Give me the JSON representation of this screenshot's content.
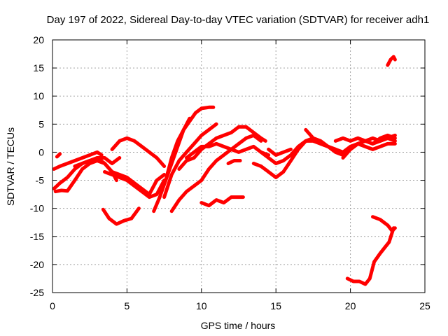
{
  "chart_data": {
    "type": "line",
    "title": "Day 197 of 2022, Sidereal Day-to-day VTEC variation (SDTVAR) for receiver adh1",
    "xlabel": "GPS time / hours",
    "ylabel": "SDTVAR / TECUs",
    "xlim": [
      0,
      25
    ],
    "ylim": [
      -25,
      20
    ],
    "xticks": [
      0,
      5,
      10,
      15,
      20,
      25
    ],
    "yticks": [
      -25,
      -20,
      -15,
      -10,
      -5,
      0,
      5,
      10,
      15,
      20
    ],
    "grid": true,
    "color": "#ff0000",
    "series": [
      {
        "name": "s1",
        "x": [
          0.1,
          0.5,
          1.0,
          1.5,
          2.0,
          2.5,
          3.0,
          3.3
        ],
        "y": [
          -3.0,
          -2.5,
          -2.0,
          -1.5,
          -1.0,
          -0.5,
          0.0,
          -0.5
        ]
      },
      {
        "name": "s2",
        "x": [
          0.1,
          0.5,
          1.0,
          1.5,
          2.0,
          2.5
        ],
        "y": [
          -6.5,
          -5.5,
          -4.5,
          -3.0,
          -2.0,
          -1.5
        ]
      },
      {
        "name": "s3",
        "x": [
          0.2,
          0.6,
          1.0,
          1.5,
          2.0,
          2.5,
          3.0,
          3.5,
          4.0,
          4.3
        ],
        "y": [
          -7.0,
          -6.8,
          -6.9,
          -5.0,
          -3.0,
          -2.0,
          -1.5,
          -2.0,
          -3.5,
          -5.0
        ]
      },
      {
        "name": "s4",
        "x": [
          0.3,
          0.5
        ],
        "y": [
          -0.8,
          -0.3
        ]
      },
      {
        "name": "s5",
        "x": [
          1.5,
          2.0,
          2.5,
          3.0,
          3.5,
          4.0,
          4.5
        ],
        "y": [
          -2.5,
          -2.0,
          -1.5,
          -1.0,
          -1.0,
          -2.0,
          -1.0
        ]
      },
      {
        "name": "s6",
        "x": [
          3.0,
          3.5,
          4.0,
          4.5,
          5.0,
          5.5,
          6.0,
          6.5,
          7.0,
          7.5
        ],
        "y": [
          -1.0,
          -2.0,
          -3.5,
          -4.0,
          -4.5,
          -5.5,
          -6.5,
          -7.5,
          -5.0,
          -4.0
        ]
      },
      {
        "name": "s7",
        "x": [
          3.5,
          4.0,
          4.5,
          5.0,
          5.5,
          6.0,
          6.5,
          7.0,
          7.5
        ],
        "y": [
          -3.5,
          -4.0,
          -4.5,
          -5.0,
          -6.0,
          -7.0,
          -8.0,
          -7.5,
          -5.0
        ]
      },
      {
        "name": "s8",
        "x": [
          4.0,
          4.5,
          5.0,
          5.5,
          6.0,
          6.5,
          7.0,
          7.5
        ],
        "y": [
          0.5,
          2.0,
          2.5,
          2.0,
          1.0,
          0.0,
          -1.0,
          -2.5
        ]
      },
      {
        "name": "s9",
        "x": [
          3.4,
          3.8,
          4.3,
          4.8,
          5.3,
          5.8
        ],
        "y": [
          -10.2,
          -11.8,
          -12.8,
          -12.2,
          -11.8,
          -10.0
        ]
      },
      {
        "name": "s10",
        "x": [
          6.8,
          7.2,
          7.6,
          8.0,
          8.4,
          8.8,
          9.2
        ],
        "y": [
          -10.5,
          -8.0,
          -5.0,
          -2.0,
          1.0,
          4.0,
          6.0
        ]
      },
      {
        "name": "s11",
        "x": [
          7.6,
          8.0,
          8.4,
          8.8,
          9.2,
          9.6,
          10.0,
          10.5,
          10.8
        ],
        "y": [
          -5.0,
          -1.0,
          2.0,
          4.0,
          5.5,
          7.0,
          7.8,
          8.0,
          8.0
        ]
      },
      {
        "name": "s12",
        "x": [
          7.5,
          8.0,
          8.5,
          9.0,
          9.5,
          10.0,
          10.5,
          11.0
        ],
        "y": [
          -8.0,
          -4.0,
          -1.5,
          0.0,
          1.5,
          3.0,
          4.0,
          5.0
        ]
      },
      {
        "name": "s13",
        "x": [
          8.5,
          9.0,
          9.5,
          10.0,
          10.5,
          11.0,
          11.5,
          12.0,
          12.5,
          13.0,
          13.5,
          14.0,
          14.3
        ],
        "y": [
          -3.0,
          -1.5,
          -1.0,
          0.5,
          1.5,
          2.5,
          3.0,
          3.5,
          4.5,
          4.5,
          3.5,
          2.5,
          2.0
        ]
      },
      {
        "name": "s14",
        "x": [
          8.0,
          8.5,
          9.0,
          9.5,
          10.0,
          10.5,
          11.0,
          11.5,
          12.0,
          12.5,
          13.0,
          13.5,
          14.0
        ],
        "y": [
          -10.5,
          -8.5,
          -7.0,
          -6.0,
          -5.0,
          -3.0,
          -1.5,
          -0.5,
          0.5,
          1.5,
          2.5,
          3.0,
          2.0
        ]
      },
      {
        "name": "s15",
        "x": [
          9.0,
          9.5,
          10.0,
          10.5,
          11.0,
          11.5,
          12.0,
          12.5,
          13.0,
          13.5,
          14.0,
          14.5
        ],
        "y": [
          -1.0,
          0.0,
          1.0,
          1.0,
          1.5,
          1.0,
          0.5,
          0.0,
          0.5,
          1.0,
          0.0,
          -0.5
        ]
      },
      {
        "name": "s16",
        "x": [
          10.0,
          10.5,
          11.0,
          11.5,
          12.0,
          12.5,
          12.8
        ],
        "y": [
          -9.0,
          -9.5,
          -8.5,
          -9.0,
          -8.0,
          -8.0,
          -8.0
        ]
      },
      {
        "name": "s17",
        "x": [
          11.8,
          12.2,
          12.6
        ],
        "y": [
          -2.0,
          -1.5,
          -1.5
        ]
      },
      {
        "name": "s18",
        "x": [
          13.5,
          14.0,
          14.5,
          15.0,
          15.5,
          16.0,
          16.5,
          17.0,
          17.5,
          18.0,
          18.5,
          19.0
        ],
        "y": [
          -2.0,
          -2.5,
          -3.5,
          -4.5,
          -3.5,
          -1.5,
          0.5,
          2.0,
          2.5,
          2.0,
          1.0,
          0.5
        ]
      },
      {
        "name": "s19",
        "x": [
          14.0,
          14.5,
          15.0,
          15.5,
          16.0,
          16.5,
          17.0,
          17.5,
          18.0,
          18.5,
          19.0,
          19.5,
          20.0,
          20.5,
          21.0
        ],
        "y": [
          0.0,
          -1.0,
          -2.0,
          -1.5,
          -0.5,
          1.0,
          2.0,
          2.0,
          1.5,
          1.0,
          0.0,
          -0.5,
          0.5,
          1.5,
          2.0
        ]
      },
      {
        "name": "s20",
        "x": [
          14.5,
          15.0,
          15.5,
          16.0
        ],
        "y": [
          0.5,
          -0.5,
          0.0,
          0.5
        ]
      },
      {
        "name": "s21",
        "x": [
          17.0,
          17.5,
          18.0,
          18.5,
          19.0,
          19.5,
          20.0,
          20.5,
          21.0,
          21.5,
          22.0,
          22.5,
          23.0
        ],
        "y": [
          4.0,
          2.5,
          1.5,
          1.0,
          0.5,
          0.0,
          1.0,
          1.5,
          2.0,
          2.5,
          2.0,
          2.5,
          3.0
        ]
      },
      {
        "name": "s22",
        "x": [
          19.0,
          19.5,
          20.0,
          20.5,
          21.0,
          21.5,
          22.0,
          22.5,
          23.0
        ],
        "y": [
          2.0,
          2.5,
          2.0,
          2.5,
          2.0,
          1.5,
          2.0,
          2.5,
          2.0
        ]
      },
      {
        "name": "s23",
        "x": [
          19.5,
          20.0,
          20.5,
          21.0,
          21.5,
          22.0,
          22.5,
          23.0
        ],
        "y": [
          -1.0,
          0.5,
          1.5,
          1.0,
          0.5,
          1.0,
          1.5,
          1.5
        ]
      },
      {
        "name": "s24",
        "x": [
          20.5,
          21.0,
          21.5,
          22.0,
          22.5,
          23.0
        ],
        "y": [
          2.5,
          2.0,
          1.5,
          2.5,
          3.0,
          2.5
        ]
      },
      {
        "name": "s25",
        "x": [
          22.5,
          22.7,
          22.9,
          23.0
        ],
        "y": [
          15.5,
          16.5,
          17.0,
          16.5
        ]
      },
      {
        "name": "s26",
        "x": [
          21.5,
          22.0,
          22.5,
          22.8,
          23.0
        ],
        "y": [
          -11.5,
          -12.0,
          -13.0,
          -14.0,
          -13.5
        ]
      },
      {
        "name": "s27",
        "x": [
          19.8,
          20.2,
          20.6,
          21.0,
          21.3,
          21.6,
          22.0,
          22.3,
          22.6,
          22.9
        ],
        "y": [
          -22.5,
          -23.0,
          -23.0,
          -23.5,
          -22.5,
          -19.5,
          -18.0,
          -17.0,
          -16.0,
          -13.5
        ]
      }
    ]
  }
}
